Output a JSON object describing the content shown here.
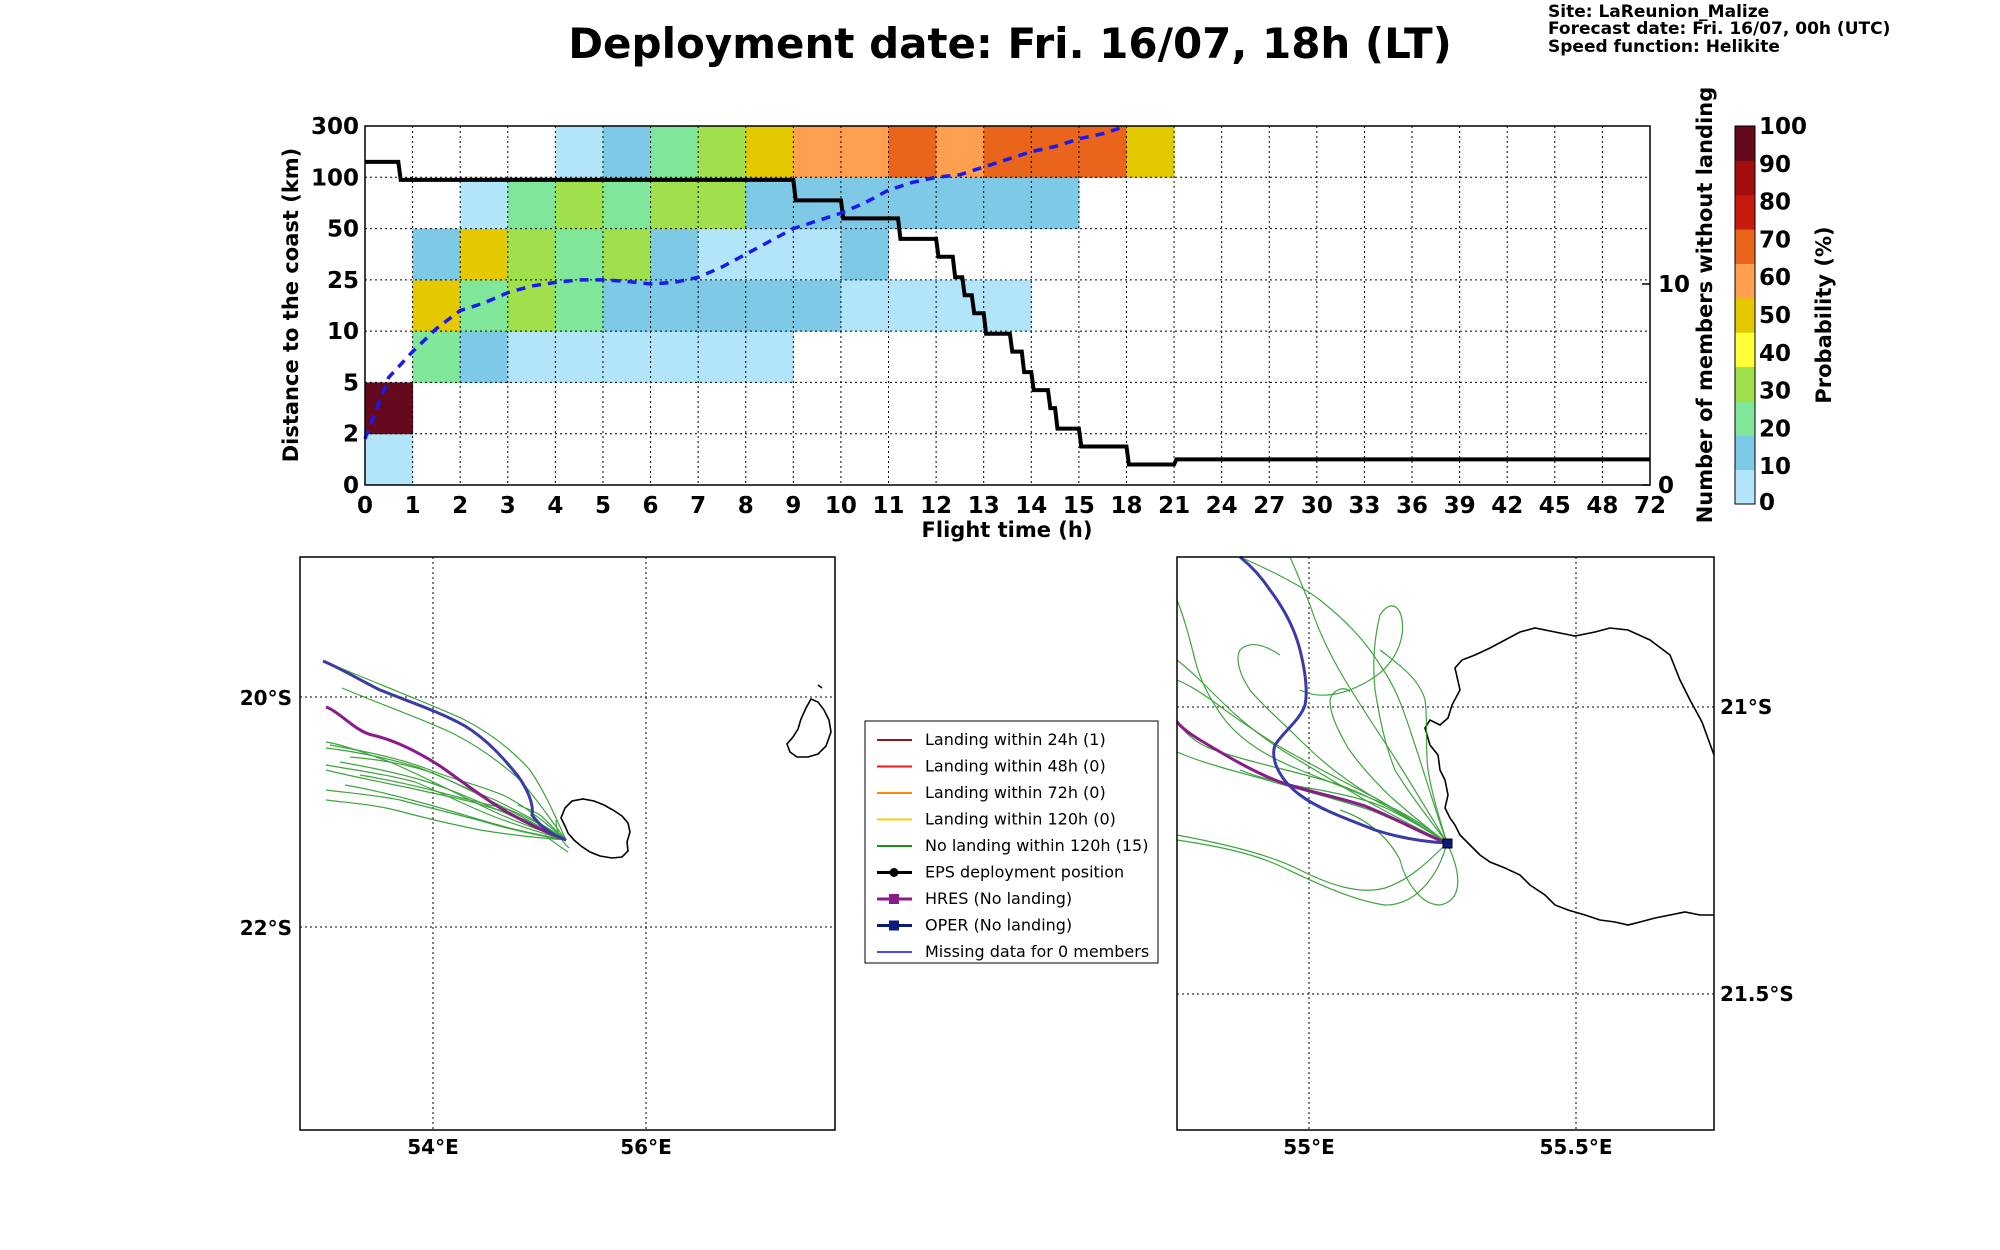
{
  "header": {
    "title": "Deployment date: Fri. 16/07, 18h (LT)",
    "site": "Site: LaReunion_Malize",
    "forecast": "Forecast date: Fri. 16/07, 00h (UTC)",
    "speed": "Speed function: Helikite"
  },
  "chart_data": [
    {
      "type": "heatmap",
      "xlabel": "Flight time (h)",
      "ylabel": "Distance to the coast (km)",
      "y2label": "Number of members without landing",
      "x_ticks": [
        "0",
        "1",
        "2",
        "3",
        "4",
        "5",
        "6",
        "7",
        "8",
        "9",
        "10",
        "11",
        "12",
        "13",
        "14",
        "15",
        "18",
        "21",
        "24",
        "27",
        "30",
        "33",
        "36",
        "39",
        "42",
        "45",
        "48",
        "72"
      ],
      "y_ticks": [
        "0",
        "2",
        "5",
        "10",
        "25",
        "50",
        "100",
        "300"
      ],
      "y2_ticks": [
        "0",
        "10"
      ],
      "colorbar": {
        "label": "Probability (%)",
        "ticks": [
          "0",
          "10",
          "20",
          "30",
          "40",
          "50",
          "60",
          "70",
          "80",
          "90",
          "100"
        ],
        "colors": [
          "#b3e5fa",
          "#7ecae6",
          "#80e699",
          "#9fe04c",
          "#ffff3a",
          "#e5c900",
          "#ff9f4f",
          "#e8651b",
          "#c61a0d",
          "#a30d0d",
          "#650a1e"
        ]
      },
      "cells": [
        {
          "x": 0,
          "y": 0,
          "c": 0
        },
        {
          "x": 0,
          "y": 1,
          "c": 10
        },
        {
          "x": 1,
          "y": 2,
          "c": 2
        },
        {
          "x": 1,
          "y": 3,
          "c": 5
        },
        {
          "x": 1,
          "y": 4,
          "c": 1
        },
        {
          "x": 2,
          "y": 2,
          "c": 1
        },
        {
          "x": 2,
          "y": 3,
          "c": 2
        },
        {
          "x": 2,
          "y": 4,
          "c": 5
        },
        {
          "x": 2,
          "y": 5,
          "c": 0
        },
        {
          "x": 3,
          "y": 2,
          "c": 0
        },
        {
          "x": 3,
          "y": 3,
          "c": 3
        },
        {
          "x": 3,
          "y": 4,
          "c": 3
        },
        {
          "x": 3,
          "y": 5,
          "c": 2
        },
        {
          "x": 4,
          "y": 2,
          "c": 0
        },
        {
          "x": 4,
          "y": 3,
          "c": 2
        },
        {
          "x": 4,
          "y": 4,
          "c": 2
        },
        {
          "x": 4,
          "y": 5,
          "c": 3
        },
        {
          "x": 4,
          "y": 6,
          "c": 0
        },
        {
          "x": 5,
          "y": 2,
          "c": 0
        },
        {
          "x": 5,
          "y": 3,
          "c": 1
        },
        {
          "x": 5,
          "y": 4,
          "c": 3
        },
        {
          "x": 5,
          "y": 5,
          "c": 2
        },
        {
          "x": 5,
          "y": 6,
          "c": 1
        },
        {
          "x": 6,
          "y": 2,
          "c": 0
        },
        {
          "x": 6,
          "y": 3,
          "c": 1
        },
        {
          "x": 6,
          "y": 4,
          "c": 1
        },
        {
          "x": 6,
          "y": 5,
          "c": 3
        },
        {
          "x": 6,
          "y": 6,
          "c": 2
        },
        {
          "x": 7,
          "y": 2,
          "c": 0
        },
        {
          "x": 7,
          "y": 3,
          "c": 1
        },
        {
          "x": 7,
          "y": 4,
          "c": 0
        },
        {
          "x": 7,
          "y": 5,
          "c": 3
        },
        {
          "x": 7,
          "y": 6,
          "c": 3
        },
        {
          "x": 8,
          "y": 2,
          "c": 0
        },
        {
          "x": 8,
          "y": 3,
          "c": 1
        },
        {
          "x": 8,
          "y": 4,
          "c": 0
        },
        {
          "x": 8,
          "y": 5,
          "c": 1
        },
        {
          "x": 8,
          "y": 6,
          "c": 5
        },
        {
          "x": 9,
          "y": 3,
          "c": 1
        },
        {
          "x": 9,
          "y": 4,
          "c": 0
        },
        {
          "x": 9,
          "y": 5,
          "c": 1
        },
        {
          "x": 9,
          "y": 6,
          "c": 6
        },
        {
          "x": 10,
          "y": 3,
          "c": 0
        },
        {
          "x": 10,
          "y": 4,
          "c": 1
        },
        {
          "x": 10,
          "y": 5,
          "c": 1
        },
        {
          "x": 10,
          "y": 6,
          "c": 6
        },
        {
          "x": 11,
          "y": 3,
          "c": 0
        },
        {
          "x": 11,
          "y": 5,
          "c": 1
        },
        {
          "x": 11,
          "y": 6,
          "c": 7
        },
        {
          "x": 12,
          "y": 3,
          "c": 0
        },
        {
          "x": 12,
          "y": 5,
          "c": 1
        },
        {
          "x": 12,
          "y": 6,
          "c": 6
        },
        {
          "x": 13,
          "y": 3,
          "c": 0
        },
        {
          "x": 13,
          "y": 5,
          "c": 1
        },
        {
          "x": 13,
          "y": 6,
          "c": 7
        },
        {
          "x": 14,
          "y": 5,
          "c": 1
        },
        {
          "x": 14,
          "y": 6,
          "c": 7
        },
        {
          "x": 15,
          "y": 6,
          "c": 7
        },
        {
          "x": 16,
          "y": 6,
          "c": 5
        }
      ],
      "series": [
        {
          "name": "",
          "style": "solid black",
          "x": [
            0,
            0.7,
            0.75,
            9.0,
            9.05,
            10.0,
            10.05,
            11.2,
            11.25,
            12.0,
            12.05,
            12.35,
            12.4,
            12.55,
            12.6,
            12.75,
            12.8,
            13.0,
            13.05,
            13.55,
            13.6,
            13.8,
            13.85,
            14.0,
            14.05,
            14.35,
            14.4,
            14.5,
            14.55,
            15.0,
            15.05,
            16.0,
            16.05,
            17.0,
            17.05,
            27.0
          ],
          "y": [
            6.3,
            6.3,
            5.95,
            5.95,
            5.55,
            5.55,
            5.2,
            5.2,
            4.8,
            4.8,
            4.45,
            4.45,
            4.05,
            4.05,
            3.7,
            3.7,
            3.35,
            3.35,
            2.95,
            2.95,
            2.6,
            2.6,
            2.2,
            2.2,
            1.85,
            1.85,
            1.5,
            1.5,
            1.1,
            1.1,
            0.75,
            0.75,
            0.4,
            0.4,
            0.5,
            0.5
          ]
        },
        {
          "name": "",
          "style": "dashed blue",
          "x": [
            0,
            0.5,
            1,
            1.5,
            2,
            2.5,
            3,
            3.5,
            4,
            4.5,
            5,
            5.5,
            6,
            6.5,
            7,
            7.5,
            8,
            8.5,
            9,
            9.5,
            10,
            10.5,
            11,
            11.5,
            12,
            12.5,
            13,
            13.5,
            14,
            14.5,
            15,
            15.5,
            16
          ],
          "y": [
            0.9,
            2.1,
            2.6,
            3.05,
            3.4,
            3.55,
            3.75,
            3.88,
            3.95,
            4.0,
            4.0,
            3.97,
            3.92,
            3.95,
            4.05,
            4.25,
            4.5,
            4.75,
            5.0,
            5.15,
            5.3,
            5.5,
            5.75,
            5.9,
            6.0,
            6.05,
            6.2,
            6.35,
            6.5,
            6.6,
            6.75,
            6.85,
            7.0
          ]
        }
      ]
    }
  ],
  "maps": {
    "left": {
      "lat_ticks": [
        "20°S",
        "22°S"
      ],
      "lon_ticks": [
        "54°E",
        "56°E"
      ]
    },
    "right": {
      "lat_ticks": [
        "21°S",
        "21.5°S"
      ],
      "lon_ticks": [
        "55°E",
        "55.5°E"
      ]
    }
  },
  "legend": [
    {
      "label": "Landing within 24h (1)",
      "color": "#8b1a1a",
      "marker": "none"
    },
    {
      "label": "Landing within 48h (0)",
      "color": "#e41a1c",
      "marker": "none"
    },
    {
      "label": "Landing within 72h (0)",
      "color": "#ff8c00",
      "marker": "none"
    },
    {
      "label": "Landing within 120h (0)",
      "color": "#f5d10a",
      "marker": "none"
    },
    {
      "label": "No landing within 120h (15)",
      "color": "#1e8c1e",
      "marker": "none"
    },
    {
      "label": "EPS deployment position",
      "color": "#000000",
      "marker": "circle"
    },
    {
      "label": "HRES (No landing)",
      "color": "#8b1a8b",
      "marker": "square"
    },
    {
      "label": "OPER (No landing)",
      "color": "#0b1a7a",
      "marker": "square"
    },
    {
      "label": "Missing data for 0 members",
      "color": "#4a4aff",
      "marker": "none"
    }
  ]
}
